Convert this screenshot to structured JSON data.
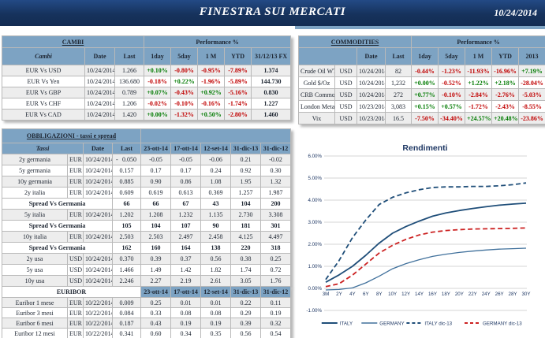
{
  "header": {
    "title": "FINESTRA SUI MERCATI",
    "date": "10/24/2014"
  },
  "colors": {
    "navy": "#16325c",
    "steel": "#7da3c3",
    "positive": "#007a00",
    "negative": "#c00000"
  },
  "cambi": {
    "title": "CAMBI",
    "perf_header": "Performance  %",
    "columns": [
      "Cambi",
      "Date",
      "Last",
      "1day",
      "5day",
      "1 M",
      "YTD",
      "31/12/13 FX"
    ],
    "rows": [
      {
        "name": "EUR Vs USD",
        "date": "10/24/2014",
        "last": "1.266",
        "perf": [
          "+0.10%",
          "-0.80%",
          "-0.95%",
          "-7.89%"
        ],
        "fx": "1.374"
      },
      {
        "name": "EUR Vs Yen",
        "date": "10/24/2014",
        "last": "136.680",
        "perf": [
          "-0.18%",
          "+0.22%",
          "-1.96%",
          "-5.89%"
        ],
        "fx": "144.730"
      },
      {
        "name": "EUR Vs GBP",
        "date": "10/24/2014",
        "last": "0.789",
        "perf": [
          "+0.07%",
          "-0.43%",
          "+0.92%",
          "-5.16%"
        ],
        "fx": "0.830"
      },
      {
        "name": "EUR Vs CHF",
        "date": "10/24/2014",
        "last": "1.206",
        "perf": [
          "-0.02%",
          "-0.10%",
          "-0.16%",
          "-1.74%"
        ],
        "fx": "1.227"
      },
      {
        "name": "EUR Vs CAD",
        "date": "10/24/2014",
        "last": "1.420",
        "perf": [
          "+0.00%",
          "-1.32%",
          "+0.50%",
          "-2.80%"
        ],
        "fx": "1.460"
      }
    ]
  },
  "commodities": {
    "title": "COMMODITIES",
    "perf_header": "Performance  %",
    "columns": [
      "",
      "Date",
      "Last",
      "1day",
      "5day",
      "1 M",
      "YTD",
      "2013"
    ],
    "rows": [
      {
        "name": "Crude Oil WTI",
        "cur": "USD",
        "date": "10/24/2014",
        "last": "82",
        "perf": [
          "-0.44%",
          "-1.23%",
          "-11.93%",
          "-16.96%",
          "+7.19%"
        ]
      },
      {
        "name": "Gold $/Oz",
        "cur": "USD",
        "date": "10/24/2014",
        "last": "1,232",
        "perf": [
          "+0.00%",
          "-0.52%",
          "+1.22%",
          "+2.18%",
          "-28.04%"
        ]
      },
      {
        "name": "CRB Commodity",
        "cur": "USD",
        "date": "10/24/2014",
        "last": "272",
        "perf": [
          "+0.77%",
          "-0.10%",
          "-2.84%",
          "-2.76%",
          "-5.03%"
        ]
      },
      {
        "name": "London Metal",
        "cur": "USD",
        "date": "10/23/2014",
        "last": "3,083",
        "perf": [
          "+0.15%",
          "+0.57%",
          "-1.72%",
          "-2.43%",
          "-8.55%"
        ]
      },
      {
        "name": "Vix",
        "cur": "USD",
        "date": "10/23/2014",
        "last": "16.5",
        "perf": [
          "-7.50%",
          "-34.40%",
          "+24.57%",
          "+20.48%",
          "-23.86%"
        ]
      }
    ]
  },
  "obbligazioni": {
    "title": "OBBLIGAZIONI - tassi e spread",
    "columns": [
      "Tassi",
      "Date",
      "Last",
      "23-ott-14",
      "17-ott-14",
      "12-set-14",
      "31-dic-13",
      "31-dic-12"
    ],
    "spread_label": "Spread Vs Germania",
    "rows": [
      {
        "type": "data",
        "name": "2y germania",
        "cur": "EUR",
        "date": "10/24/2014",
        "last_sign": "-",
        "last": "0.050",
        "vals": [
          "-0.05",
          "-0.05",
          "-0.06",
          "0.21",
          "-0.02"
        ]
      },
      {
        "type": "data",
        "name": "5y germania",
        "cur": "EUR",
        "date": "10/24/2014",
        "last": "0.157",
        "vals": [
          "0.17",
          "0.17",
          "0.24",
          "0.92",
          "0.30"
        ]
      },
      {
        "type": "data",
        "name": "10y germania",
        "cur": "EUR",
        "date": "10/24/2014",
        "last": "0.885",
        "vals": [
          "0.90",
          "0.86",
          "1.08",
          "1.95",
          "1.32"
        ]
      },
      {
        "type": "data",
        "name": "2y italia",
        "cur": "EUR",
        "date": "10/24/2014",
        "last": "0.609",
        "vals": [
          "0.619",
          "0.613",
          "0.369",
          "1.257",
          "1.987"
        ]
      },
      {
        "type": "spread",
        "last": "66",
        "vals": [
          "66",
          "67",
          "43",
          "104",
          "200"
        ]
      },
      {
        "type": "data",
        "name": "5y italia",
        "cur": "EUR",
        "date": "10/24/2014",
        "last": "1.202",
        "vals": [
          "1.208",
          "1.232",
          "1.135",
          "2.730",
          "3.308"
        ]
      },
      {
        "type": "spread",
        "last": "105",
        "vals": [
          "104",
          "107",
          "90",
          "181",
          "301"
        ]
      },
      {
        "type": "data",
        "name": "10y italia",
        "cur": "EUR",
        "date": "10/24/2014",
        "last": "2.503",
        "vals": [
          "2.503",
          "2.497",
          "2.458",
          "4.125",
          "4.497"
        ]
      },
      {
        "type": "spread",
        "last": "162",
        "vals": [
          "160",
          "164",
          "138",
          "220",
          "318"
        ]
      },
      {
        "type": "data",
        "name": "2y usa",
        "cur": "USD",
        "date": "10/24/2014",
        "last": "0.370",
        "vals": [
          "0.39",
          "0.37",
          "0.56",
          "0.38",
          "0.25"
        ]
      },
      {
        "type": "data",
        "name": "5y usa",
        "cur": "USD",
        "date": "10/24/2014",
        "last": "1.466",
        "vals": [
          "1.49",
          "1.42",
          "1.82",
          "1.74",
          "0.72"
        ]
      },
      {
        "type": "data",
        "name": "10y usa",
        "cur": "USD",
        "date": "10/24/2014",
        "last": "2.246",
        "vals": [
          "2.27",
          "2.19",
          "2.61",
          "3.05",
          "1.76"
        ]
      }
    ]
  },
  "euribor": {
    "title": "EURIBOR",
    "columns": [
      "23-ott-14",
      "17-ott-14",
      "12-set-14",
      "31-dic-13",
      "31-dic-12"
    ],
    "rows": [
      {
        "name": "Euribor 1 mese",
        "cur": "EUR",
        "date": "10/22/2014",
        "last": "0.009",
        "vals": [
          "0.25",
          "0.01",
          "0.01",
          "0.22",
          "0.11"
        ]
      },
      {
        "name": "Euribor 3 mesi",
        "cur": "EUR",
        "date": "10/22/2014",
        "last": "0.084",
        "vals": [
          "0.33",
          "0.08",
          "0.08",
          "0.29",
          "0.19"
        ]
      },
      {
        "name": "Euribor 6 mesi",
        "cur": "EUR",
        "date": "10/22/2014",
        "last": "0.187",
        "vals": [
          "0.43",
          "0.19",
          "0.19",
          "0.39",
          "0.32"
        ]
      },
      {
        "name": "Euribor 12 mesi",
        "cur": "EUR",
        "date": "10/22/2014",
        "last": "0.341",
        "vals": [
          "0.60",
          "0.34",
          "0.35",
          "0.56",
          "0.54"
        ]
      }
    ]
  },
  "chart_data": {
    "type": "line",
    "title": "Rendimenti",
    "x": [
      "3M",
      "2Y",
      "4Y",
      "6Y",
      "8Y",
      "10Y",
      "12Y",
      "14Y",
      "16Y",
      "18Y",
      "20Y",
      "22Y",
      "24Y",
      "26Y",
      "28Y",
      "30Y"
    ],
    "xlabel": "",
    "ylabel": "",
    "ylim": [
      -1,
      6
    ],
    "y_ticks": [
      "6.00%",
      "5.00%",
      "4.00%",
      "3.00%",
      "2.00%",
      "1.00%",
      "0.00%",
      "-1.00%"
    ],
    "grid": true,
    "legend_position": "bottom",
    "series": [
      {
        "name": "ITALY",
        "color": "#1f4e79",
        "dashed": false,
        "width": 1.8,
        "values": [
          0.28,
          0.61,
          1.0,
          1.5,
          2.05,
          2.5,
          2.8,
          3.05,
          3.27,
          3.42,
          3.53,
          3.62,
          3.7,
          3.77,
          3.82,
          3.86
        ]
      },
      {
        "name": "GERMANY",
        "color": "#41719c",
        "dashed": false,
        "width": 1.3,
        "values": [
          -0.07,
          -0.05,
          0.02,
          0.25,
          0.55,
          0.89,
          1.12,
          1.3,
          1.45,
          1.55,
          1.63,
          1.69,
          1.74,
          1.78,
          1.8,
          1.82
        ]
      },
      {
        "name": "ITALY dic-13",
        "color": "#1f4e79",
        "dashed": true,
        "width": 1.8,
        "values": [
          0.4,
          1.26,
          2.3,
          3.1,
          3.8,
          4.13,
          4.33,
          4.47,
          4.57,
          4.6,
          4.6,
          4.62,
          4.62,
          4.65,
          4.7,
          4.78
        ]
      },
      {
        "name": "GERMANY dic-13",
        "color": "#cc2222",
        "dashed": true,
        "width": 1.8,
        "values": [
          0.08,
          0.21,
          0.6,
          1.1,
          1.6,
          1.95,
          2.22,
          2.42,
          2.55,
          2.62,
          2.66,
          2.69,
          2.7,
          2.71,
          2.72,
          2.74
        ]
      }
    ]
  }
}
